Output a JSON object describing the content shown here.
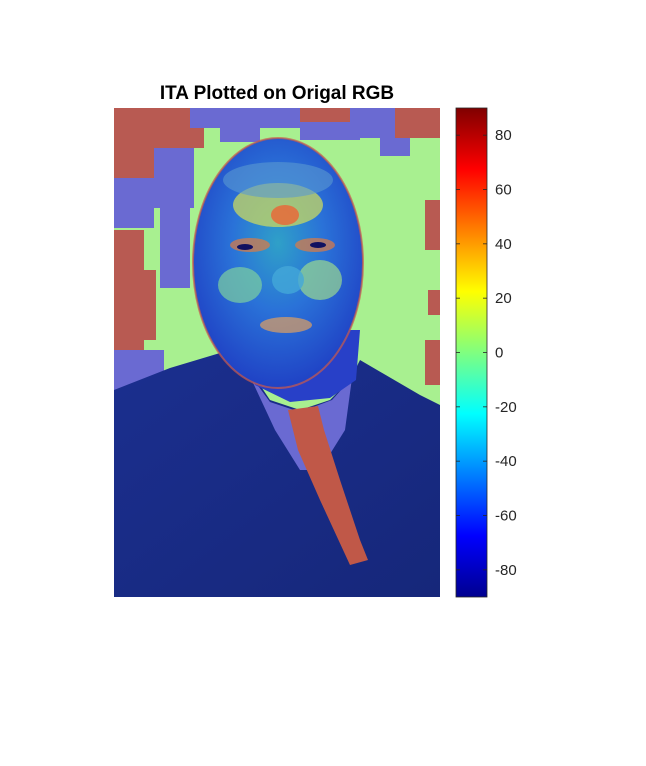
{
  "chart_data": {
    "type": "heatmap",
    "title": "ITA Plotted on Origal RGB",
    "colormap": "jet",
    "colorbar": {
      "range": [
        -90,
        90
      ],
      "ticks": [
        80,
        60,
        40,
        20,
        0,
        -20,
        -40,
        -60,
        -80
      ],
      "tick_labels": [
        "80",
        "60",
        "40",
        "20",
        "0",
        "-20",
        "-40",
        "-60",
        "-80"
      ]
    },
    "image_content": "portrait-overlay",
    "axes_visible": false
  }
}
